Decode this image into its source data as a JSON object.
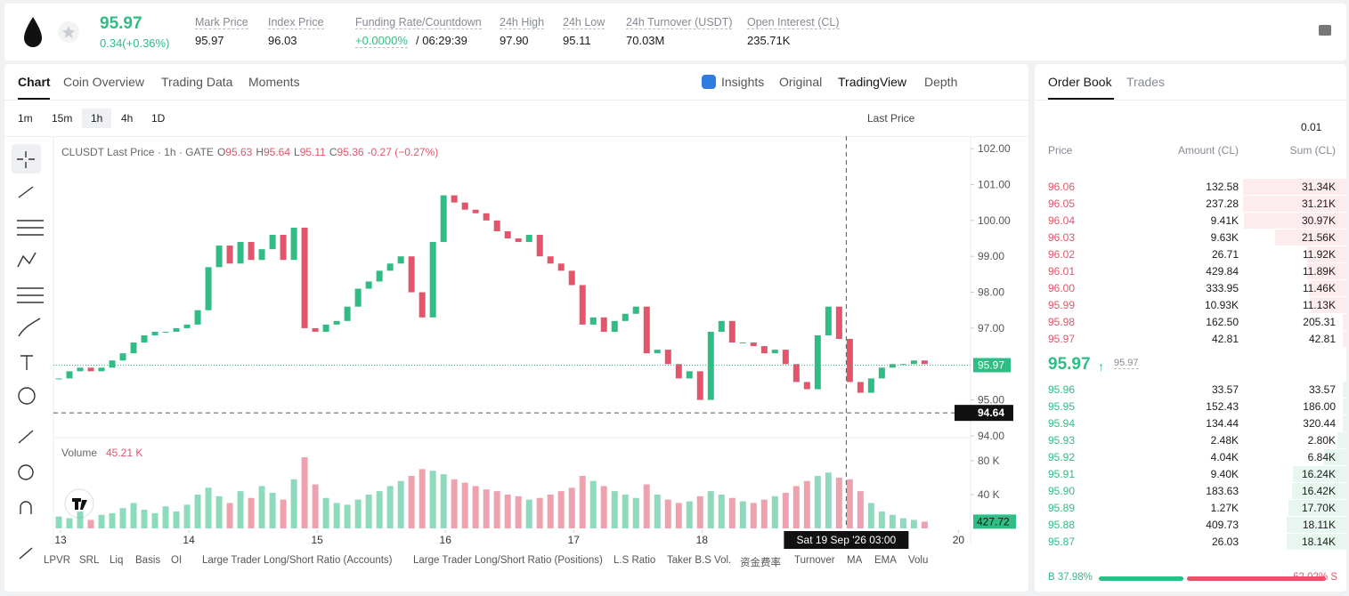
{
  "header": {
    "price": "95.97",
    "change": "0.34(+0.36%)",
    "stats": [
      {
        "label": "Mark Price",
        "value": "95.97"
      },
      {
        "label": "Index Price",
        "value": "96.03"
      },
      {
        "label": "Funding Rate/Countdown",
        "value": "+0.0000%",
        "extra": "/ 06:29:39"
      },
      {
        "label": "24h High",
        "value": "97.90"
      },
      {
        "label": "24h Low",
        "value": "95.11"
      },
      {
        "label": "24h Turnover (USDT)",
        "value": "70.03M"
      },
      {
        "label": "Open Interest (CL)",
        "value": "235.71K"
      }
    ]
  },
  "tabs": [
    "Chart",
    "Coin Overview",
    "Trading Data",
    "Moments"
  ],
  "views": [
    "Insights",
    "Original",
    "TradingView",
    "Depth"
  ],
  "intervals": [
    "1m",
    "15m",
    "1h",
    "4h",
    "1D"
  ],
  "price_type": "Last Price",
  "legend": {
    "symbol": "CLUSDT Last Price · 1h · GATE",
    "ohlc": [
      {
        "k": "O",
        "v": "95.63"
      },
      {
        "k": "H",
        "v": "95.64"
      },
      {
        "k": "L",
        "v": "95.11"
      },
      {
        "k": "C",
        "v": "95.36"
      }
    ],
    "change": "-0.27 (−0.27%)"
  },
  "indicators": [
    "LPVR",
    "SRL",
    "Liq",
    "Basis",
    "OI",
    "Large Trader Long/Short Ratio (Accounts)",
    "Large Trader Long/Short Ratio (Positions)",
    "L.S Ratio",
    "Taker B.S Vol.",
    "资金费率",
    "Turnover",
    "MA",
    "EMA",
    "Volu"
  ],
  "chart_data": {
    "type": "candlestick",
    "closes": [
      95.6,
      95.8,
      95.9,
      95.8,
      95.9,
      96.1,
      96.3,
      96.6,
      96.8,
      96.9,
      96.9,
      97.0,
      97.1,
      97.5,
      98.7,
      99.3,
      98.8,
      99.4,
      98.9,
      99.2,
      99.6,
      98.9,
      99.8,
      97.0,
      96.9,
      97.1,
      97.2,
      97.6,
      98.1,
      98.3,
      98.6,
      98.8,
      99.0,
      98.0,
      97.3,
      99.4,
      100.7,
      100.5,
      100.3,
      100.2,
      100.0,
      99.7,
      99.5,
      99.4,
      99.6,
      99.0,
      98.8,
      98.6,
      98.2,
      97.1,
      97.3,
      96.9,
      97.2,
      97.4,
      97.6,
      96.3,
      96.4,
      96.0,
      95.6,
      95.8,
      95.0,
      96.9,
      97.2,
      96.6,
      96.6,
      96.5,
      96.3,
      96.4,
      96.0,
      95.5,
      95.3,
      96.8,
      97.6,
      96.7,
      95.5,
      95.2,
      95.6,
      95.9,
      96.0,
      96.0,
      96.1,
      96.0
    ],
    "volumes": [
      14,
      12,
      20,
      10,
      16,
      18,
      24,
      30,
      22,
      18,
      26,
      20,
      28,
      40,
      48,
      38,
      30,
      44,
      36,
      50,
      42,
      34,
      58,
      84,
      52,
      36,
      30,
      28,
      34,
      40,
      44,
      50,
      56,
      62,
      70,
      68,
      64,
      58,
      54,
      50,
      46,
      44,
      40,
      38,
      34,
      36,
      40,
      44,
      48,
      62,
      56,
      50,
      44,
      40,
      36,
      52,
      40,
      34,
      30,
      32,
      38,
      44,
      40,
      36,
      32,
      30,
      34,
      38,
      42,
      50,
      56,
      62,
      66,
      60,
      58,
      44,
      30,
      20,
      16,
      12,
      10,
      8
    ],
    "volume_title": "Volume",
    "volume_value": "45.21 K",
    "volume_last": "427.72",
    "xlim": [
      0,
      85.8
    ],
    "ylim": [
      93.95,
      102.35
    ],
    "yticks": [
      {
        "value": 94,
        "label": "94.00"
      },
      {
        "value": 95,
        "label": "95.00"
      },
      {
        "value": 97,
        "label": "97.00"
      },
      {
        "value": 98,
        "label": "98.00"
      },
      {
        "value": 99,
        "label": "99.00"
      },
      {
        "value": 100,
        "label": "100.00"
      },
      {
        "value": 101,
        "label": "101.00"
      },
      {
        "value": 102,
        "label": "102.00"
      }
    ],
    "vlim": [
      0,
      104
    ],
    "vticks": [
      {
        "value": 40,
        "label": "40 K"
      },
      {
        "value": 80,
        "label": "80 K"
      }
    ],
    "xticks": [
      {
        "value": 0.67,
        "label": "13"
      },
      {
        "value": 12.67,
        "label": "14"
      },
      {
        "value": 24.67,
        "label": "15"
      },
      {
        "value": 36.67,
        "label": "16"
      },
      {
        "value": 48.67,
        "label": "17"
      },
      {
        "value": 60.67,
        "label": "18"
      },
      {
        "value": 84.67,
        "label": "20"
      }
    ],
    "last_price": {
      "value": 95.97,
      "label": "95.97"
    },
    "crosshair": {
      "value": 94.64,
      "label": "94.64",
      "x": 74.17,
      "time": "Sat 19 Sep '26  03:00"
    },
    "up_color": "#2ebd85",
    "down_color": "#e4546b"
  },
  "order_book": {
    "title": "Order Book",
    "trades": "Trades",
    "precision": "0.01",
    "columns": [
      "Price",
      "Amount (CL)",
      "Sum (CL)"
    ],
    "asks": [
      [
        "96.06",
        "132.58",
        "31.34K"
      ],
      [
        "96.05",
        "237.28",
        "31.21K"
      ],
      [
        "96.04",
        "9.41K",
        "30.97K"
      ],
      [
        "96.03",
        "9.63K",
        "21.56K"
      ],
      [
        "96.02",
        "26.71",
        "11.92K"
      ],
      [
        "96.01",
        "429.84",
        "11.89K"
      ],
      [
        "96.00",
        "333.95",
        "11.46K"
      ],
      [
        "95.99",
        "10.93K",
        "11.13K"
      ],
      [
        "95.98",
        "162.50",
        "205.31"
      ],
      [
        "95.97",
        "42.81",
        "42.81"
      ]
    ],
    "mid": "95.97",
    "mark": "95.97",
    "bids": [
      [
        "95.96",
        "33.57",
        "33.57"
      ],
      [
        "95.95",
        "152.43",
        "186.00"
      ],
      [
        "95.94",
        "134.44",
        "320.44"
      ],
      [
        "95.93",
        "2.48K",
        "2.80K"
      ],
      [
        "95.92",
        "4.04K",
        "6.84K"
      ],
      [
        "95.91",
        "9.40K",
        "16.24K"
      ],
      [
        "95.90",
        "183.63",
        "16.42K"
      ],
      [
        "95.89",
        "1.27K",
        "17.70K"
      ],
      [
        "95.88",
        "409.73",
        "18.11K"
      ],
      [
        "95.87",
        "26.03",
        "18.14K"
      ]
    ],
    "buy": "B 37.98%",
    "sell": "62.02% S",
    "buy_pct": 37.98
  }
}
